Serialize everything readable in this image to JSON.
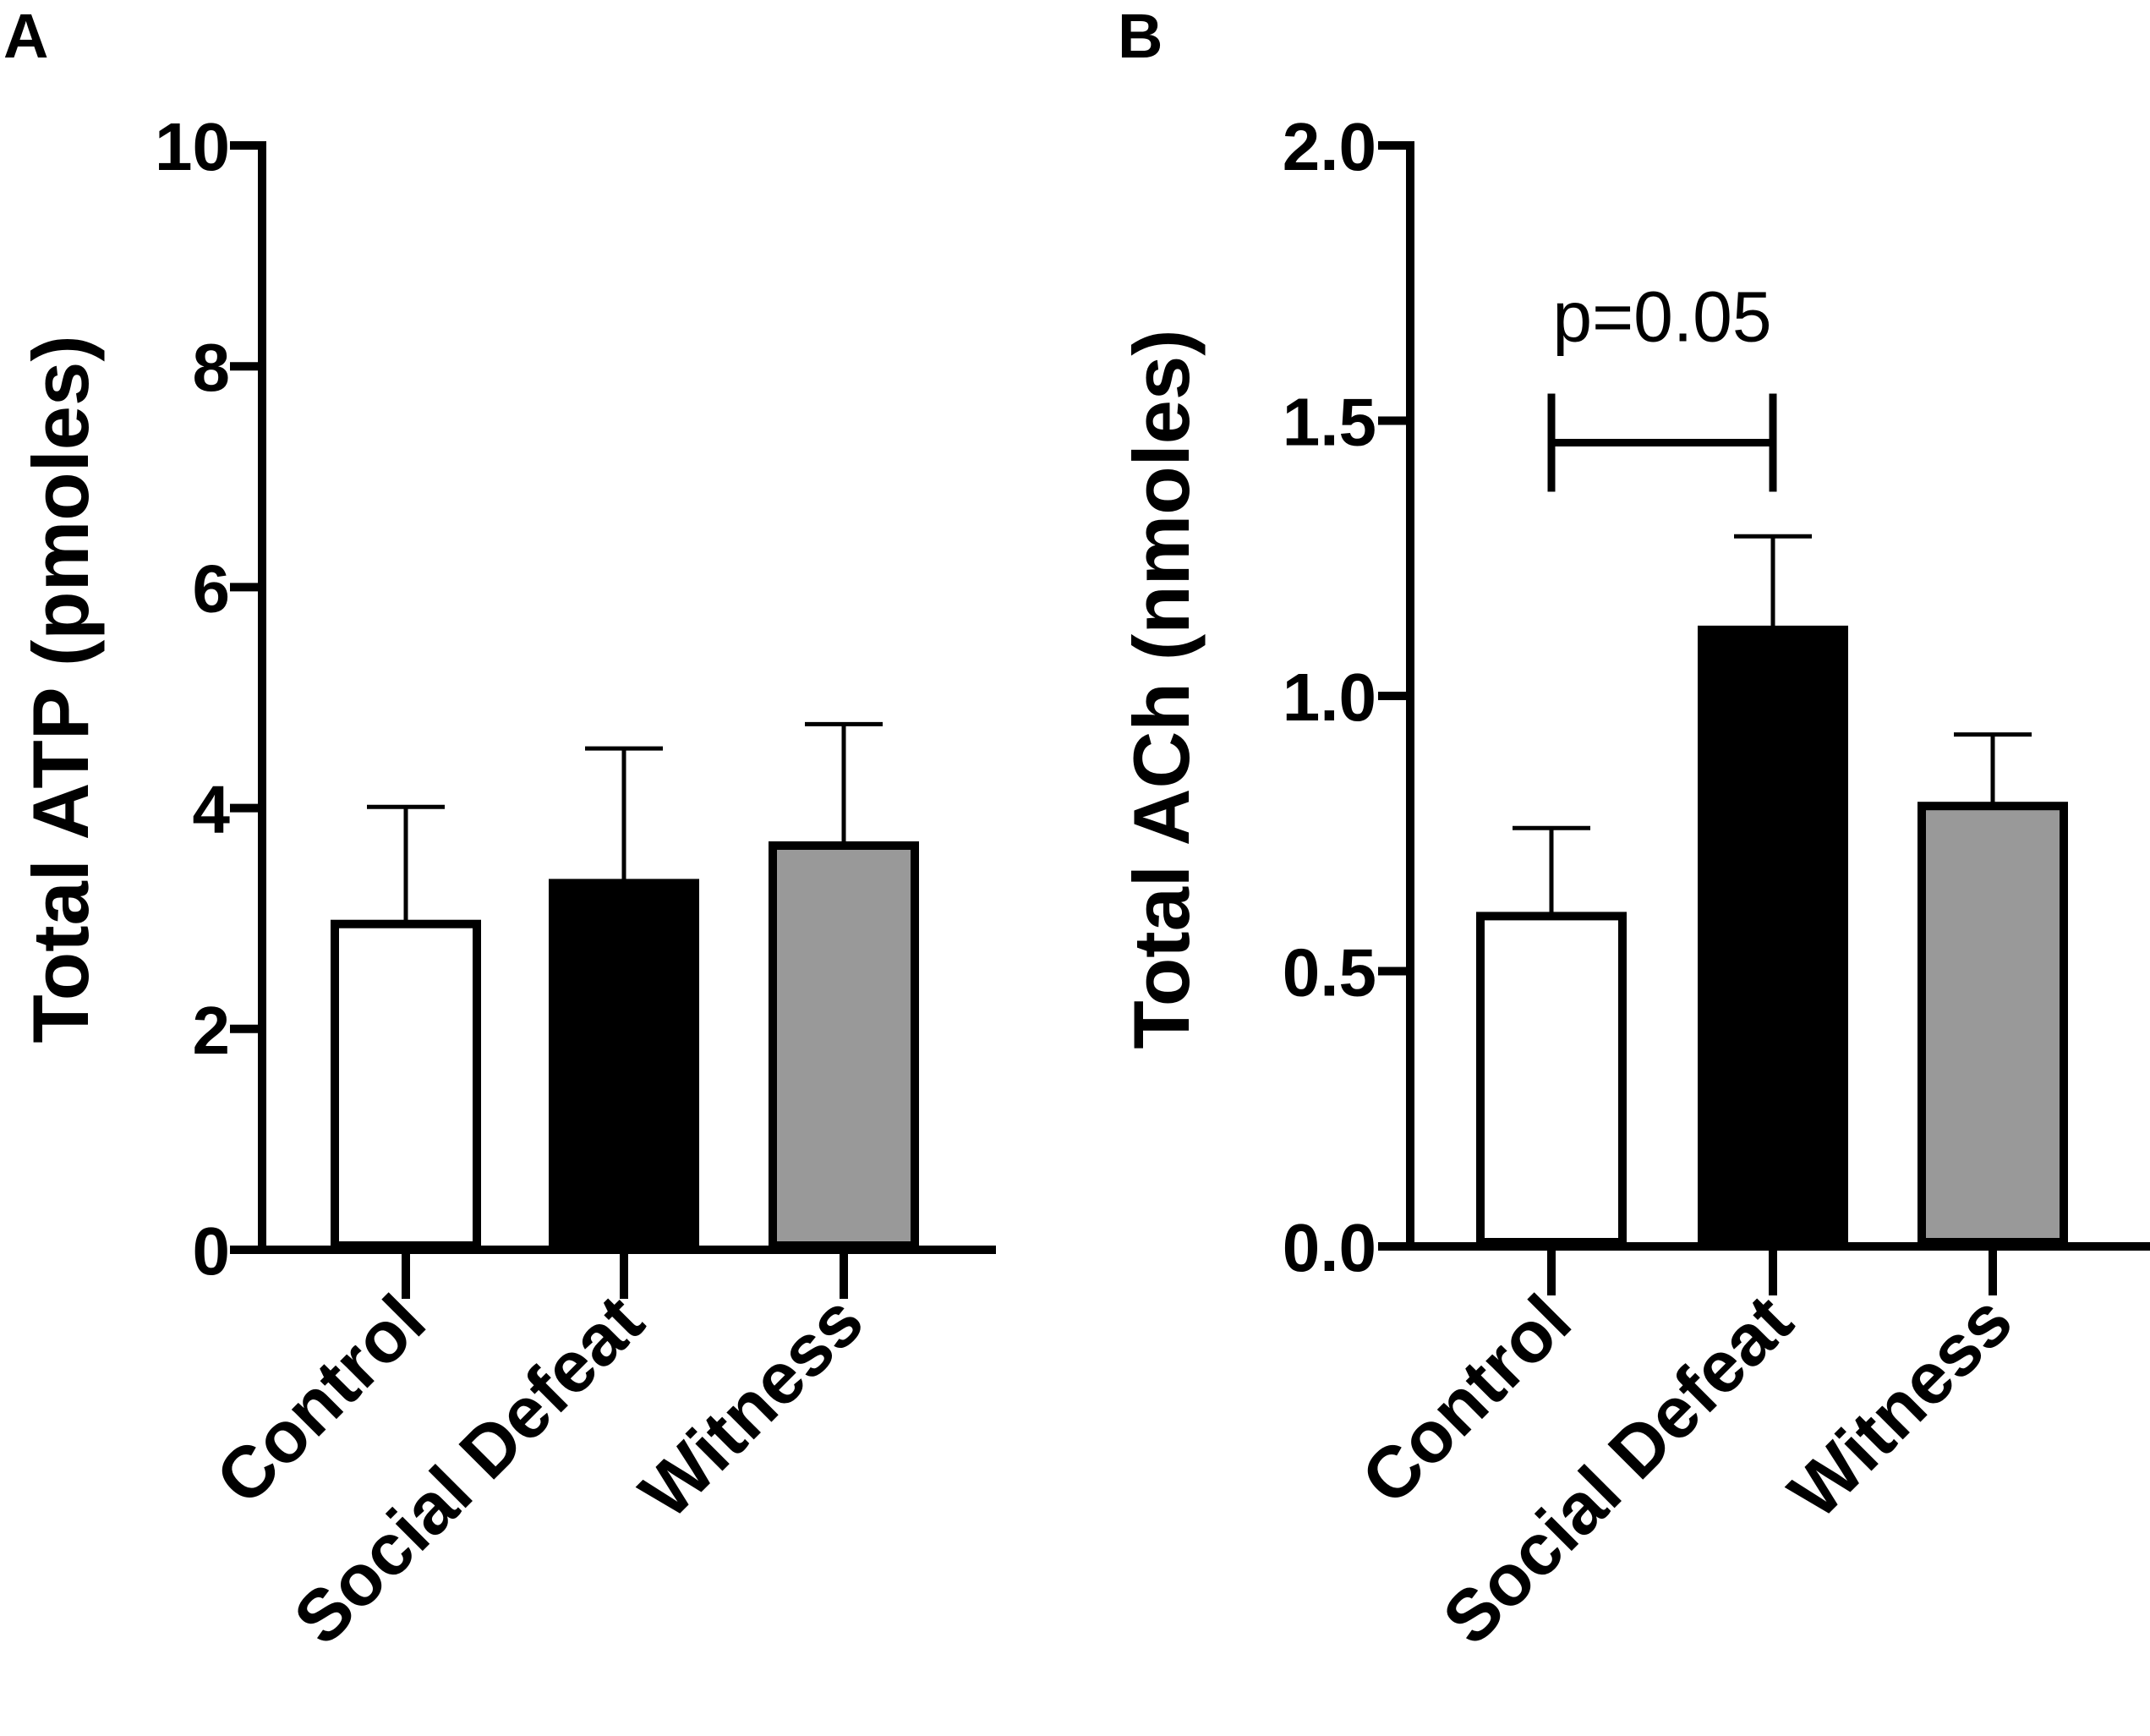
{
  "chart_data": [
    {
      "panel": "A",
      "type": "bar",
      "title": "",
      "xlabel": "",
      "ylabel": "Total ATP (pmoles)",
      "ylim": [
        0,
        10
      ],
      "yticks": [
        0,
        2,
        4,
        6,
        8,
        10
      ],
      "ytick_labels": [
        "0",
        "2",
        "4",
        "6",
        "8",
        "10"
      ],
      "categories": [
        "Control",
        "Social Defeat",
        "Witness"
      ],
      "values": [
        2.95,
        3.32,
        3.66
      ],
      "errors": [
        1.06,
        1.22,
        1.1
      ],
      "bar_colors": [
        "#ffffff",
        "#000000",
        "#999999"
      ],
      "grid": false,
      "annotations": []
    },
    {
      "panel": "B",
      "type": "bar",
      "title": "",
      "xlabel": "",
      "ylabel": "Total ACh (nmoles)",
      "ylim": [
        0,
        2.0
      ],
      "yticks": [
        0,
        0.5,
        1.0,
        1.5,
        2.0
      ],
      "ytick_labels": [
        "0.0",
        "0.5",
        "1.0",
        "1.5",
        "2.0"
      ],
      "categories": [
        "Control",
        "Social Defeat",
        "Witness"
      ],
      "values": [
        0.6,
        1.12,
        0.8
      ],
      "errors": [
        0.16,
        0.17,
        0.13
      ],
      "bar_colors": [
        "#ffffff",
        "#000000",
        "#999999"
      ],
      "grid": false,
      "annotations": [
        {
          "text": "p=0.05",
          "from": "Control",
          "to": "Social Defeat",
          "y": 1.46
        }
      ]
    }
  ]
}
